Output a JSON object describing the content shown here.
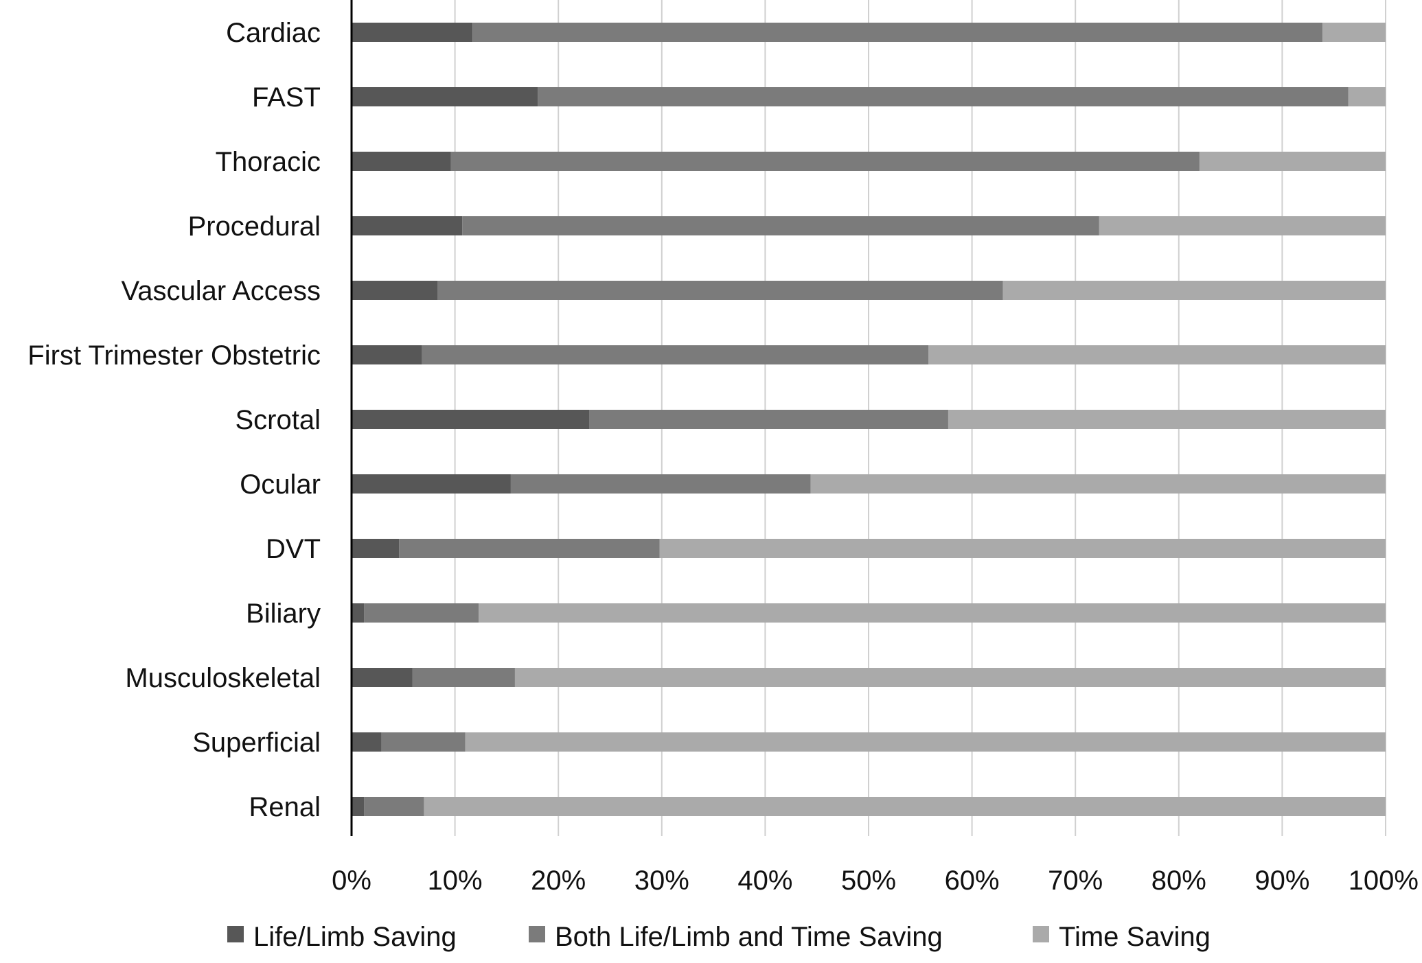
{
  "chart_data": {
    "type": "bar",
    "orientation": "horizontal",
    "stacked": "percent",
    "categories": [
      "Cardiac",
      "FAST",
      "Thoracic",
      "Procedural",
      "Vascular Access",
      "First Trimester Obstetric",
      "Scrotal",
      "Ocular",
      "DVT",
      "Biliary",
      "Musculoskeletal",
      "Superficial",
      "Renal"
    ],
    "series": [
      {
        "name": "Life/Limb Saving",
        "color": "#575757",
        "values": [
          11.7,
          18.0,
          9.6,
          10.7,
          8.3,
          6.8,
          23.0,
          15.4,
          4.6,
          1.2,
          5.9,
          2.9,
          1.2
        ]
      },
      {
        "name": "Both Life/Limb and Time Saving",
        "color": "#7b7b7b",
        "values": [
          82.2,
          78.4,
          72.4,
          61.6,
          54.7,
          49.0,
          34.7,
          29.0,
          25.2,
          11.1,
          9.9,
          8.1,
          5.8
        ]
      },
      {
        "name": "Time Saving",
        "color": "#aaaaaa",
        "values": [
          6.1,
          3.6,
          18.0,
          27.7,
          37.0,
          44.2,
          42.3,
          55.6,
          70.2,
          87.7,
          84.2,
          89.0,
          93.0
        ]
      }
    ],
    "xlim": [
      0,
      100
    ],
    "xticks": [
      "0%",
      "10%",
      "20%",
      "30%",
      "40%",
      "50%",
      "60%",
      "70%",
      "80%",
      "90%",
      "100%"
    ],
    "title": "",
    "xlabel": "",
    "ylabel": "",
    "grid": "vertical",
    "legend": "bottom"
  }
}
